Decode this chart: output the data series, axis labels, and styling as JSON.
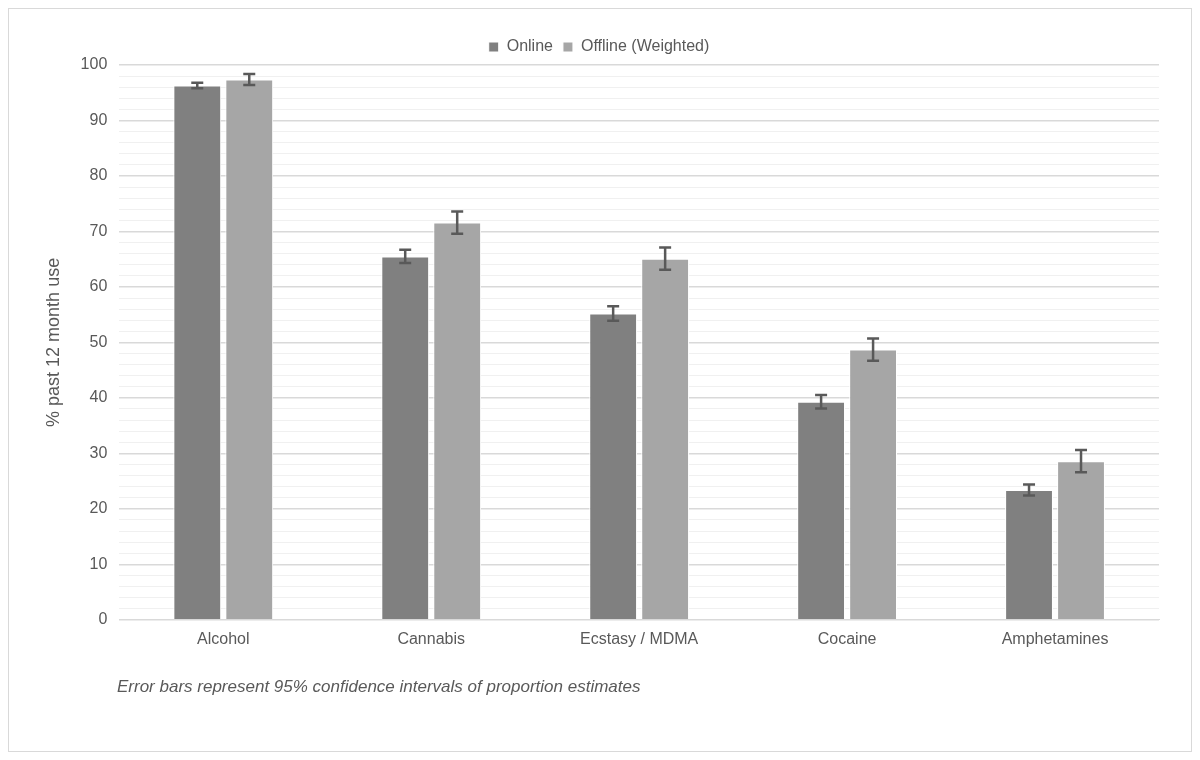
{
  "chart_data": {
    "type": "bar",
    "ylabel": "% past 12 month use",
    "categories": [
      "Alcohol",
      "Cannabis",
      "Ecstasy / MDMA",
      "Cocaine",
      "Amphetamines"
    ],
    "series": [
      {
        "name": "Online",
        "color": "#808080",
        "values": [
          96.3,
          65.5,
          55.2,
          39.3,
          23.4
        ],
        "errors": [
          0.5,
          1.2,
          1.3,
          1.2,
          1
        ]
      },
      {
        "name": "Offline (Weighted)",
        "color": "#a6a6a6",
        "values": [
          97.4,
          71.6,
          65.1,
          48.7,
          28.6
        ],
        "errors": [
          1,
          2,
          2,
          2,
          2
        ]
      }
    ],
    "ylim": [
      0,
      100
    ],
    "yticks": [
      0,
      {
        "value": 2,
        "label": null
      },
      {
        "value": 4,
        "label": null
      },
      {
        "value": 6,
        "label": null
      },
      {
        "value": 8,
        "label": null
      },
      10,
      {
        "value": 12,
        "label": null
      },
      {
        "value": 14,
        "label": null
      },
      {
        "value": 16,
        "label": null
      },
      {
        "value": 18,
        "label": null
      },
      20,
      {
        "value": 22,
        "label": null
      },
      {
        "value": 24,
        "label": null
      },
      {
        "value": 26,
        "label": null
      },
      {
        "value": 28,
        "label": null
      },
      30,
      {
        "value": 32,
        "label": null
      },
      {
        "value": 34,
        "label": null
      },
      {
        "value": 36,
        "label": null
      },
      {
        "value": 38,
        "label": null
      },
      40,
      {
        "value": 42,
        "label": null
      },
      {
        "value": 44,
        "label": null
      },
      {
        "value": 46,
        "label": null
      },
      {
        "value": 48,
        "label": null
      },
      50,
      {
        "value": 52,
        "label": null
      },
      {
        "value": 54,
        "label": null
      },
      {
        "value": 56,
        "label": null
      },
      {
        "value": 58,
        "label": null
      },
      60,
      {
        "value": 62,
        "label": null
      },
      {
        "value": 64,
        "label": null
      },
      {
        "value": 66,
        "label": null
      },
      {
        "value": 68,
        "label": null
      },
      70,
      {
        "value": 72,
        "label": null
      },
      {
        "value": 74,
        "label": null
      },
      {
        "value": 76,
        "label": null
      },
      {
        "value": 78,
        "label": null
      },
      80,
      {
        "value": 82,
        "label": null
      },
      {
        "value": 84,
        "label": null
      },
      {
        "value": 86,
        "label": null
      },
      {
        "value": 88,
        "label": null
      },
      90,
      {
        "value": 92,
        "label": null
      },
      {
        "value": 94,
        "label": null
      },
      {
        "value": 96,
        "label": null
      },
      {
        "value": 98,
        "label": null
      },
      100
    ],
    "grid": "y",
    "legend": "top",
    "annotations": [
      "Error bars represent 95% confidence intervals of proportion estimates"
    ]
  }
}
